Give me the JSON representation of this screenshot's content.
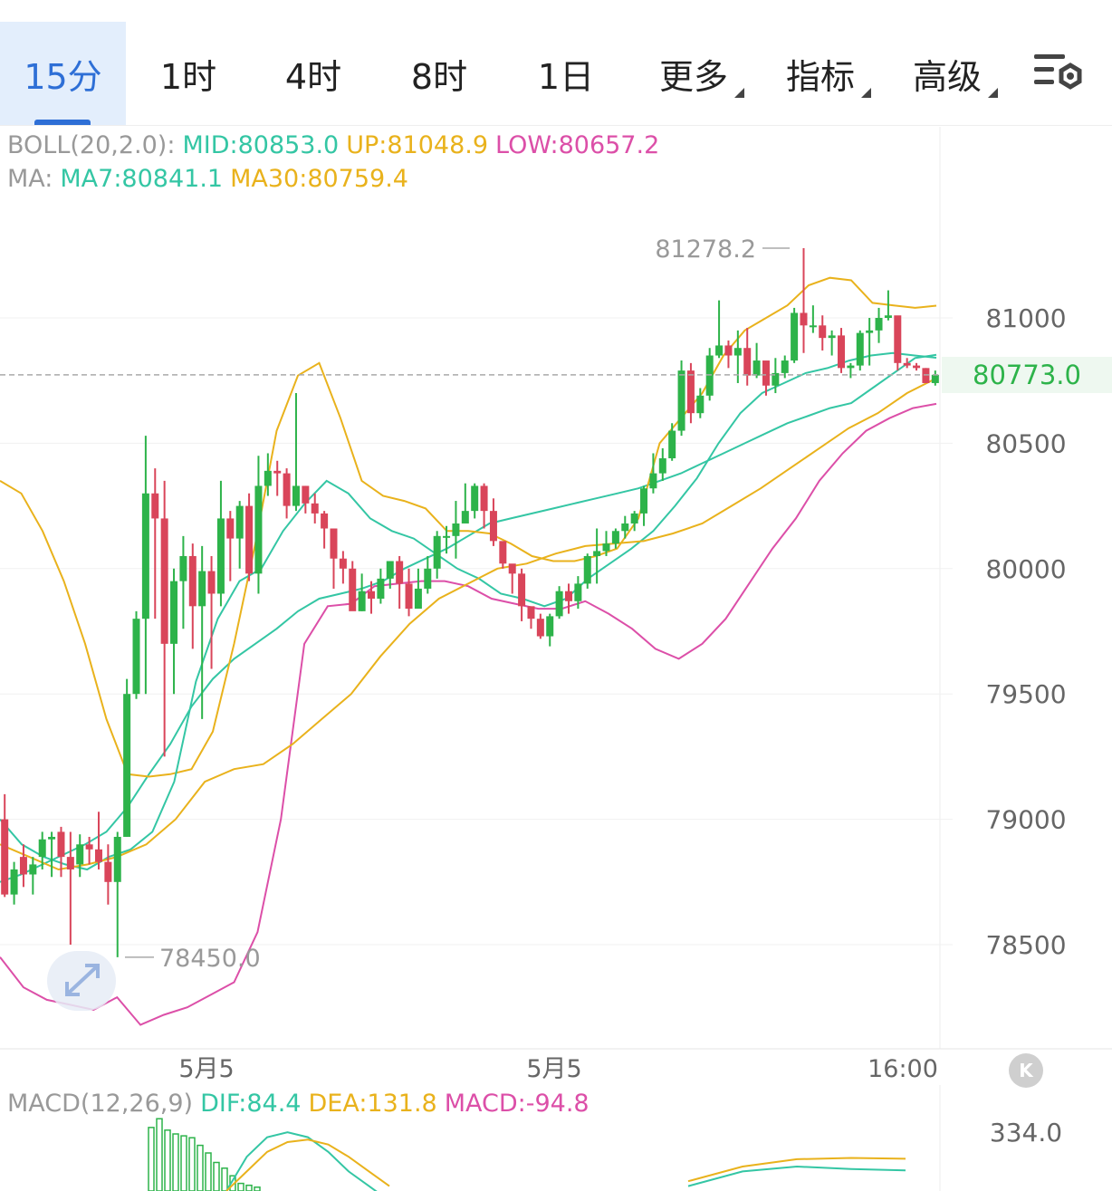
{
  "tabs": [
    {
      "label": "15分",
      "active": true
    },
    {
      "label": "1时"
    },
    {
      "label": "4时"
    },
    {
      "label": "8时"
    },
    {
      "label": "1日"
    },
    {
      "label": "更多",
      "dropdown": true
    },
    {
      "label": "指标",
      "dropdown": true
    },
    {
      "label": "高级",
      "dropdown": true
    }
  ],
  "settings_icon": "chart-settings-icon",
  "boll_legend": {
    "name": "BOLL(20,2.0):",
    "mid": "MID:80853.0",
    "up": "UP:81048.9",
    "low": "LOW:80657.2"
  },
  "ma_legend": {
    "name": "MA:",
    "ma7": "MA7:80841.1",
    "ma30": "MA30:80759.4"
  },
  "macd_legend": {
    "name": "MACD(12,26,9)",
    "dif": "DIF:84.4",
    "dea": "DEA:131.8",
    "macd": "MACD:-94.8"
  },
  "current_price": "80773.0",
  "max_label": "81278.2",
  "min_label": "78450.0",
  "macd_axis_label": "334.0",
  "k_button": "K",
  "colors": {
    "up": "#2db34a",
    "down": "#d9455a",
    "mid": "#34c6a4",
    "upper": "#e9b21c",
    "lower": "#dc4fa8",
    "accent": "#2e6fd6"
  },
  "chart_data": {
    "type": "candlestick",
    "y_ticks": [
      81000,
      80500,
      80000,
      79500,
      79000,
      78500
    ],
    "y_tick_labels": [
      "81000",
      "80500",
      "80000",
      "79500",
      "79000",
      "78500"
    ],
    "x_tick_labels": [
      "5月5",
      "5月5",
      "16:00"
    ],
    "candles": [
      [
        79000,
        78700,
        79100,
        78690
      ],
      [
        78700,
        78800,
        78830,
        78660
      ],
      [
        78850,
        78780,
        78900,
        78730
      ],
      [
        78780,
        78820,
        78850,
        78700
      ],
      [
        78850,
        78920,
        78950,
        78800
      ],
      [
        78920,
        78930,
        78950,
        78770
      ],
      [
        78950,
        78850,
        78970,
        78770
      ],
      [
        78850,
        78800,
        78950,
        78500
      ],
      [
        78820,
        78900,
        78940,
        78770
      ],
      [
        78900,
        78880,
        78930,
        78820
      ],
      [
        78880,
        78830,
        79030,
        78800
      ],
      [
        78830,
        78750,
        78900,
        78660
      ],
      [
        78750,
        78930,
        78950,
        78450
      ],
      [
        78930,
        79500,
        79560,
        78930
      ],
      [
        79500,
        79800,
        79830,
        79480
      ],
      [
        79800,
        80300,
        80530,
        79500
      ],
      [
        80300,
        80200,
        80400,
        79800
      ],
      [
        80200,
        79700,
        80350,
        79250
      ],
      [
        79700,
        79950,
        80000,
        79500
      ],
      [
        79950,
        80050,
        80130,
        79760
      ],
      [
        80050,
        79850,
        80100,
        79680
      ],
      [
        79850,
        79990,
        80090,
        79400
      ],
      [
        79990,
        79900,
        80050,
        79600
      ],
      [
        79900,
        80200,
        80350,
        79850
      ],
      [
        80200,
        80120,
        80230,
        79950
      ],
      [
        80120,
        80250,
        80270,
        80000
      ],
      [
        80250,
        79980,
        80300,
        79950
      ],
      [
        79980,
        80330,
        80450,
        79900
      ],
      [
        80330,
        80390,
        80460,
        80290
      ],
      [
        80390,
        80380,
        80430,
        80290
      ],
      [
        80380,
        80250,
        80400,
        80200
      ],
      [
        80250,
        80330,
        80700,
        80230
      ],
      [
        80330,
        80260,
        80330,
        80220
      ],
      [
        80260,
        80220,
        80300,
        80180
      ],
      [
        80220,
        80160,
        80230,
        80080
      ],
      [
        80160,
        80040,
        80160,
        79920
      ],
      [
        80040,
        80000,
        80070,
        79940
      ],
      [
        80000,
        79830,
        80030,
        79840
      ],
      [
        79830,
        79910,
        79980,
        79830
      ],
      [
        79910,
        79880,
        79950,
        79820
      ],
      [
        79880,
        79960,
        80000,
        79860
      ],
      [
        79960,
        80030,
        80030,
        79920
      ],
      [
        80030,
        79940,
        80050,
        79840
      ],
      [
        79940,
        79840,
        80000,
        79810
      ],
      [
        79840,
        79920,
        80000,
        79880
      ],
      [
        79920,
        80000,
        80050,
        79900
      ],
      [
        80000,
        80130,
        80150,
        79960
      ],
      [
        80130,
        80130,
        80170,
        80060
      ],
      [
        80130,
        80180,
        80270,
        80040
      ],
      [
        80180,
        80230,
        80340,
        80200
      ],
      [
        80230,
        80330,
        80340,
        80200
      ],
      [
        80330,
        80230,
        80340,
        80160
      ],
      [
        80230,
        80110,
        80280,
        80090
      ],
      [
        80110,
        80020,
        80050,
        80000
      ],
      [
        80020,
        79980,
        80000,
        79900
      ],
      [
        79980,
        79850,
        80000,
        79790
      ],
      [
        79850,
        79800,
        79840,
        79760
      ],
      [
        79800,
        79730,
        79820,
        79720
      ],
      [
        79730,
        79810,
        79820,
        79690
      ],
      [
        79810,
        79910,
        79930,
        79800
      ],
      [
        79910,
        79870,
        79940,
        79820
      ],
      [
        79870,
        79940,
        79970,
        79840
      ],
      [
        79940,
        80050,
        80060,
        79920
      ],
      [
        80050,
        80070,
        80160,
        79940
      ],
      [
        80070,
        80100,
        80150,
        80050
      ],
      [
        80100,
        80150,
        80160,
        80080
      ],
      [
        80150,
        80180,
        80210,
        80120
      ],
      [
        80180,
        80220,
        80230,
        80150
      ],
      [
        80220,
        80320,
        80330,
        80170
      ],
      [
        80320,
        80380,
        80460,
        80300
      ],
      [
        80380,
        80440,
        80480,
        80350
      ],
      [
        80440,
        80550,
        80580,
        80430
      ],
      [
        80550,
        80790,
        80830,
        80530
      ],
      [
        80790,
        80620,
        80820,
        80580
      ],
      [
        80620,
        80690,
        80720,
        80600
      ],
      [
        80690,
        80850,
        80880,
        80670
      ],
      [
        80850,
        80890,
        81070,
        80840
      ],
      [
        80890,
        80850,
        80910,
        80800
      ],
      [
        80850,
        80880,
        80950,
        80740
      ],
      [
        80880,
        80770,
        80960,
        80730
      ],
      [
        80770,
        80830,
        80900,
        80760
      ],
      [
        80830,
        80730,
        80800,
        80690
      ],
      [
        80730,
        80780,
        80840,
        80700
      ],
      [
        80780,
        80830,
        80850,
        80760
      ],
      [
        80830,
        81020,
        81040,
        80820
      ],
      [
        81020,
        80970,
        81278.2,
        80860
      ],
      [
        80970,
        80970,
        81050,
        80940
      ],
      [
        80970,
        80920,
        81010,
        80870
      ],
      [
        80920,
        80930,
        80950,
        80850
      ],
      [
        80930,
        80800,
        80960,
        80780
      ],
      [
        80800,
        80810,
        80820,
        80760
      ],
      [
        80810,
        80940,
        80950,
        80790
      ],
      [
        80940,
        80950,
        81000,
        80810
      ],
      [
        80950,
        81000,
        81040,
        80900
      ],
      [
        81000,
        81010,
        81110,
        80990
      ],
      [
        81010,
        80820,
        81000,
        80790
      ],
      [
        80820,
        80810,
        80840,
        80800
      ],
      [
        80810,
        80800,
        80820,
        80790
      ],
      [
        80800,
        80740,
        80800,
        80740
      ],
      [
        80740,
        80773,
        80790,
        80730
      ]
    ],
    "series": [
      {
        "name": "MID",
        "values": [
          78750,
          78780,
          78820,
          78860,
          78900,
          78950,
          79050,
          79180,
          79300,
          79450,
          79560,
          79640,
          79700,
          79760,
          79830,
          79880,
          79900,
          79920,
          79950,
          80000,
          80040,
          80080,
          80130,
          80180,
          80200,
          80220,
          80240,
          80260,
          80280,
          80300,
          80320,
          80350,
          80380,
          80420,
          80460,
          80500,
          80540,
          80580,
          80610,
          80640,
          80660,
          80720,
          80780,
          80840,
          80853
        ]
      },
      {
        "name": "UP",
        "values": [
          80350,
          80300,
          80150,
          79950,
          79700,
          79400,
          79180,
          79170,
          79180,
          79200,
          79350,
          79700,
          80100,
          80550,
          80770,
          80820,
          80600,
          80350,
          80290,
          80270,
          80240,
          80150,
          80150,
          80140,
          80100,
          80050,
          80030,
          80030,
          80050,
          80080,
          80200,
          80500,
          80600,
          80700,
          80850,
          80950,
          81000,
          81050,
          81130,
          81160,
          81150,
          81060,
          81050,
          81040,
          81048.9
        ]
      },
      {
        "name": "LOW",
        "values": [
          78450,
          78330,
          78280,
          78260,
          78240,
          78290,
          78180,
          78220,
          78250,
          78300,
          78350,
          78550,
          79000,
          79700,
          79850,
          79860,
          79930,
          79940,
          79950,
          79950,
          79930,
          79880,
          79860,
          79840,
          79840,
          79870,
          79820,
          79760,
          79680,
          79640,
          79700,
          79800,
          79940,
          80080,
          80200,
          80350,
          80460,
          80550,
          80600,
          80640,
          80657.2
        ]
      },
      {
        "name": "MA7",
        "values": [
          79000,
          78900,
          78850,
          78820,
          78800,
          78850,
          78880,
          78950,
          79150,
          79550,
          79800,
          79950,
          80000,
          80150,
          80260,
          80350,
          80300,
          80200,
          80150,
          80120,
          80060,
          80000,
          79960,
          79900,
          79880,
          79850,
          79880,
          79960,
          80020,
          80080,
          80150,
          80250,
          80360,
          80500,
          80620,
          80700,
          80740,
          80780,
          80800,
          80830,
          80850,
          80860,
          80850,
          80841.1
        ]
      },
      {
        "name": "MA30",
        "values": [
          78900,
          78850,
          78800,
          78820,
          78850,
          78900,
          79000,
          79150,
          79200,
          79220,
          79300,
          79400,
          79500,
          79650,
          79780,
          79880,
          79940,
          80000,
          80020,
          80060,
          80090,
          80100,
          80110,
          80140,
          80180,
          80250,
          80320,
          80400,
          80480,
          80560,
          80620,
          80700,
          80759.4
        ]
      }
    ]
  },
  "macd_data": {
    "bars": [
      334,
      380,
      320,
      300,
      290,
      280,
      240,
      200,
      150,
      120,
      80,
      40,
      30,
      20
    ],
    "dif": [
      0,
      140,
      220,
      240,
      220,
      160,
      80,
      20,
      -40
    ],
    "dea": [
      0,
      80,
      160,
      200,
      210,
      190,
      140,
      80,
      20
    ],
    "dif2": [
      20,
      80,
      100,
      90,
      84.4
    ],
    "dea2": [
      40,
      100,
      130,
      135,
      131.8
    ]
  }
}
